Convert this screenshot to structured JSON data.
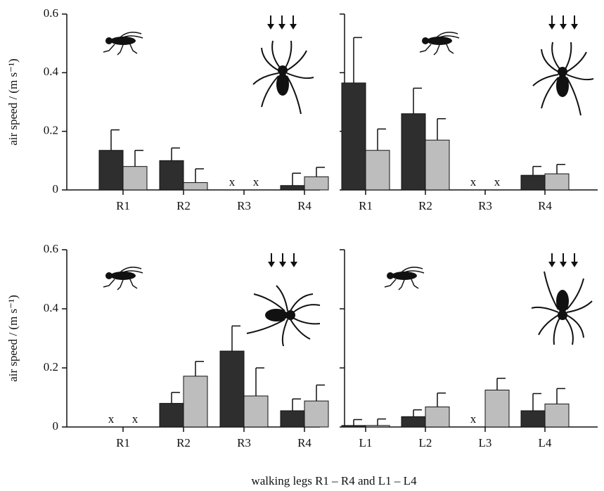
{
  "xlabel": "walking legs R1 – R4 and L1 – L4",
  "chart_data": [
    {
      "type": "bar",
      "ylabel": "air speed / (m s⁻¹)",
      "categories": [
        "R1",
        "R2",
        "R3",
        "R4"
      ],
      "missing_marker": "x",
      "ylim": [
        0,
        0.6
      ],
      "yticks": [
        0,
        0.2,
        0.4,
        0.6
      ],
      "series": [
        {
          "color": "#2e2e2e",
          "values": [
            0.135,
            0.1,
            null,
            0.015
          ],
          "errors": [
            0.07,
            0.043,
            null,
            0.042
          ]
        },
        {
          "color": "#bdbdbd",
          "values": [
            0.08,
            0.025,
            null,
            0.045
          ],
          "errors": [
            0.055,
            0.047,
            null,
            0.032
          ]
        }
      ]
    },
    {
      "type": "bar",
      "categories": [
        "R1",
        "R2",
        "R3",
        "R4"
      ],
      "missing_marker": "x",
      "ylim": [
        0,
        0.6
      ],
      "yticks": [
        0,
        0.2,
        0.4,
        0.6
      ],
      "series": [
        {
          "color": "#2e2e2e",
          "values": [
            0.365,
            0.26,
            null,
            0.05
          ],
          "errors": [
            0.155,
            0.087,
            null,
            0.03
          ]
        },
        {
          "color": "#bdbdbd",
          "values": [
            0.135,
            0.17,
            null,
            0.055
          ],
          "errors": [
            0.073,
            0.073,
            null,
            0.032
          ]
        }
      ]
    },
    {
      "type": "bar",
      "ylabel": "air speed / (m s⁻¹)",
      "categories": [
        "R1",
        "R2",
        "R3",
        "R4"
      ],
      "missing_marker": "x",
      "ylim": [
        0,
        0.6
      ],
      "yticks": [
        0,
        0.2,
        0.4,
        0.6
      ],
      "series": [
        {
          "color": "#2e2e2e",
          "values": [
            null,
            0.08,
            0.257,
            0.055
          ],
          "errors": [
            null,
            0.037,
            0.085,
            0.04
          ]
        },
        {
          "color": "#bdbdbd",
          "values": [
            null,
            0.172,
            0.105,
            0.088
          ],
          "errors": [
            null,
            0.05,
            0.095,
            0.054
          ]
        }
      ]
    },
    {
      "type": "bar",
      "categories": [
        "L1",
        "L2",
        "L3",
        "L4"
      ],
      "missing_marker": "x",
      "ylim": [
        0,
        0.6
      ],
      "yticks": [
        0,
        0.2,
        0.4,
        0.6
      ],
      "series": [
        {
          "color": "#2e2e2e",
          "values": [
            0.005,
            0.035,
            null,
            0.055
          ],
          "errors": [
            0.02,
            0.023,
            null,
            0.058
          ]
        },
        {
          "color": "#bdbdbd",
          "values": [
            0.005,
            0.068,
            0.125,
            0.078
          ],
          "errors": [
            0.022,
            0.047,
            0.04,
            0.052
          ]
        }
      ]
    }
  ]
}
